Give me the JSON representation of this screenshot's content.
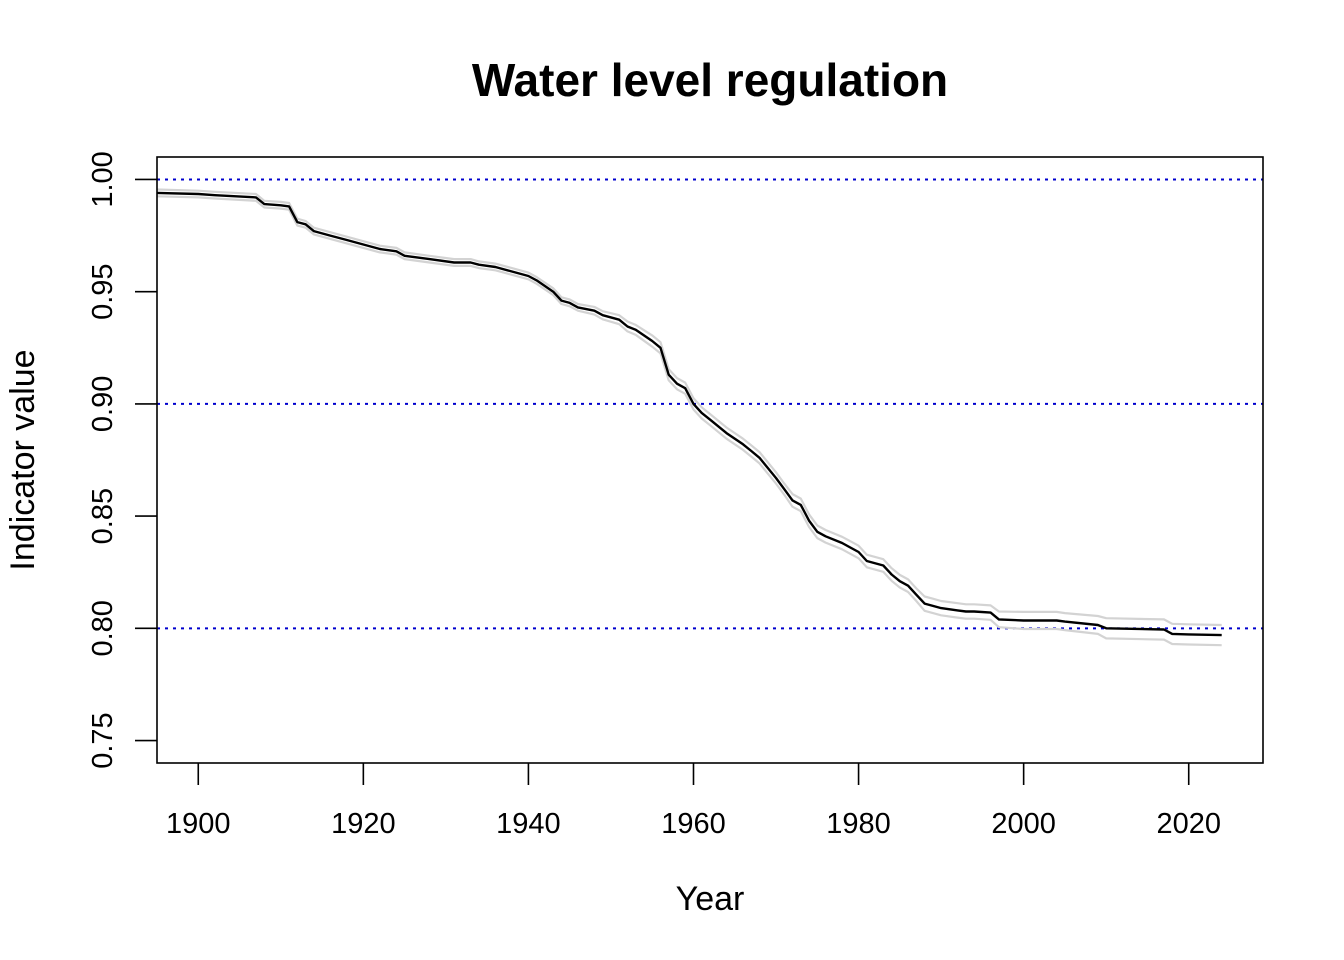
{
  "chart_data": {
    "type": "line",
    "title": "Water level regulation",
    "xlabel": "Year",
    "ylabel": "Indicator value",
    "xlim": [
      1895,
      2029
    ],
    "ylim": [
      0.74,
      1.01
    ],
    "x_ticks": [
      1900,
      1920,
      1940,
      1960,
      1980,
      2000,
      2020
    ],
    "x_tick_labels": [
      "1900",
      "1920",
      "1940",
      "1960",
      "1980",
      "2000",
      "2020"
    ],
    "y_ticks": [
      0.75,
      0.8,
      0.85,
      0.9,
      0.95,
      1.0
    ],
    "y_tick_labels": [
      "0.75",
      "0.80",
      "0.85",
      "0.90",
      "0.95",
      "1.00"
    ],
    "reference_lines": [
      1.0,
      0.9,
      0.8
    ],
    "colors": {
      "main": "#000000",
      "band": "#d3d3d3",
      "reference": "#0000cd"
    },
    "grid": false,
    "legend": "none",
    "x": [
      1895,
      1900,
      1902,
      1907,
      1908,
      1910,
      1911,
      1912,
      1913,
      1914,
      1916,
      1918,
      1920,
      1922,
      1924,
      1925,
      1928,
      1931,
      1933,
      1934,
      1936,
      1938,
      1940,
      1941,
      1943,
      1944,
      1945,
      1946,
      1948,
      1949,
      1951,
      1952,
      1953,
      1955,
      1956,
      1957,
      1958,
      1959,
      1960,
      1961,
      1962,
      1964,
      1966,
      1967,
      1968,
      1970,
      1971,
      1972,
      1973,
      1974,
      1975,
      1976,
      1978,
      1979,
      1980,
      1981,
      1983,
      1984,
      1985,
      1986,
      1987,
      1988,
      1989,
      1990,
      1992,
      1993,
      1994,
      1996,
      1997,
      2000,
      2004,
      2005,
      2009,
      2010,
      2017,
      2018,
      2020,
      2024
    ],
    "series": [
      {
        "values": [
          0.994,
          0.9935,
          0.993,
          0.992,
          0.989,
          0.9885,
          0.988,
          0.981,
          0.98,
          0.977,
          0.975,
          0.973,
          0.971,
          0.969,
          0.968,
          0.966,
          0.9645,
          0.963,
          0.963,
          0.962,
          0.961,
          0.959,
          0.957,
          0.955,
          0.95,
          0.946,
          0.945,
          0.943,
          0.9415,
          0.9395,
          0.9375,
          0.9345,
          0.933,
          0.928,
          0.925,
          0.913,
          0.909,
          0.907,
          0.9,
          0.896,
          0.893,
          0.887,
          0.882,
          0.879,
          0.876,
          0.867,
          0.862,
          0.857,
          0.855,
          0.848,
          0.843,
          0.841,
          0.838,
          0.836,
          0.834,
          0.83,
          0.828,
          0.824,
          0.821,
          0.819,
          0.815,
          0.811,
          0.81,
          0.809,
          0.808,
          0.8075,
          0.8075,
          0.807,
          0.804,
          0.8035,
          0.8035,
          0.803,
          0.8015,
          0.8,
          0.7995,
          0.7975,
          0.7973,
          0.797
        ]
      },
      {
        "values": [
          0.9955,
          0.995,
          0.9945,
          0.9935,
          0.9905,
          0.99,
          0.9895,
          0.9825,
          0.9815,
          0.9785,
          0.9765,
          0.9745,
          0.9725,
          0.9705,
          0.9695,
          0.9675,
          0.966,
          0.9645,
          0.9645,
          0.9635,
          0.9625,
          0.9605,
          0.9585,
          0.9565,
          0.9515,
          0.9475,
          0.9465,
          0.9445,
          0.9432,
          0.9413,
          0.9395,
          0.9367,
          0.9352,
          0.9305,
          0.9275,
          0.9155,
          0.9115,
          0.9095,
          0.9025,
          0.8985,
          0.8955,
          0.8895,
          0.8845,
          0.8815,
          0.8785,
          0.8695,
          0.8645,
          0.8598,
          0.8578,
          0.8508,
          0.8458,
          0.8438,
          0.8408,
          0.8388,
          0.8368,
          0.8328,
          0.8308,
          0.8268,
          0.8238,
          0.8218,
          0.8178,
          0.8142,
          0.8132,
          0.8122,
          0.8112,
          0.8107,
          0.8107,
          0.8102,
          0.8075,
          0.8073,
          0.8073,
          0.8068,
          0.8055,
          0.8045,
          0.804,
          0.802,
          0.8018,
          0.8015
        ]
      },
      {
        "values": [
          0.9925,
          0.992,
          0.9915,
          0.9905,
          0.9875,
          0.987,
          0.9865,
          0.9795,
          0.9785,
          0.9755,
          0.9735,
          0.9715,
          0.9695,
          0.9675,
          0.9665,
          0.9645,
          0.963,
          0.9615,
          0.9615,
          0.9605,
          0.9595,
          0.9575,
          0.9555,
          0.9535,
          0.9485,
          0.9445,
          0.9435,
          0.9415,
          0.9398,
          0.9377,
          0.9355,
          0.9323,
          0.9308,
          0.9255,
          0.9225,
          0.9105,
          0.9065,
          0.9045,
          0.8975,
          0.8935,
          0.8905,
          0.8845,
          0.8795,
          0.8765,
          0.8735,
          0.8645,
          0.8595,
          0.8542,
          0.8522,
          0.8452,
          0.8402,
          0.8382,
          0.8352,
          0.8332,
          0.8312,
          0.8272,
          0.8252,
          0.8212,
          0.8182,
          0.8162,
          0.8122,
          0.8078,
          0.8068,
          0.8058,
          0.8048,
          0.8043,
          0.8043,
          0.8038,
          0.8005,
          0.7997,
          0.7997,
          0.7992,
          0.7975,
          0.7955,
          0.795,
          0.793,
          0.7928,
          0.7925
        ]
      }
    ]
  }
}
